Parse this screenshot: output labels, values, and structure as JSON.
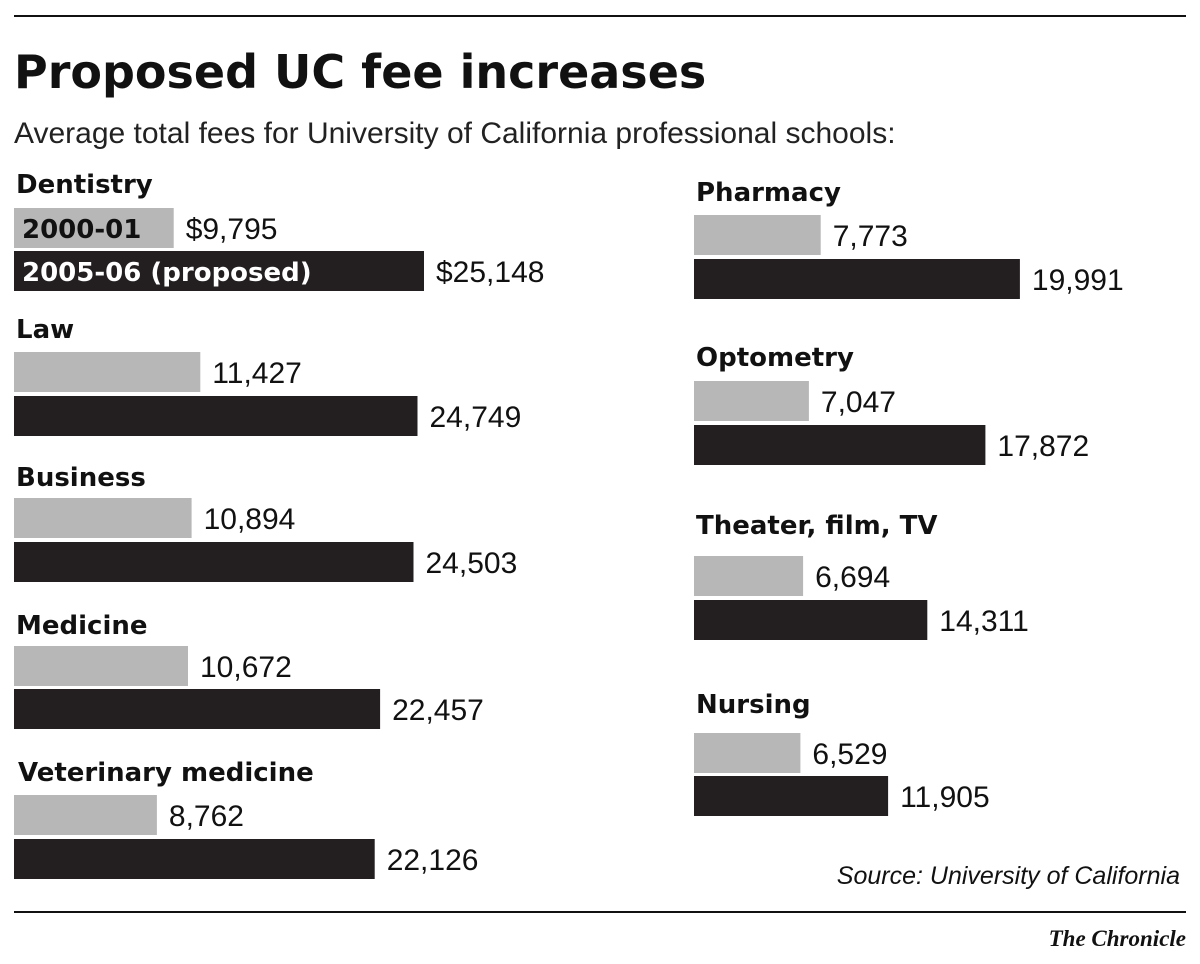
{
  "chart_data": {
    "type": "bar",
    "orientation": "horizontal",
    "title": "Proposed UC fee increases",
    "subtitle": "Average total fees for University of California professional schools:",
    "categories": [
      "Dentistry",
      "Law",
      "Business",
      "Medicine",
      "Veterinary medicine",
      "Pharmacy",
      "Optometry",
      "Theater, film, TV",
      "Nursing"
    ],
    "series": [
      {
        "name": "2000-01",
        "color": "#b7b7b7",
        "values": [
          9795,
          11427,
          10894,
          10672,
          8762,
          7773,
          7047,
          6694,
          6529
        ],
        "labels": [
          "$9,795",
          "11,427",
          "10,894",
          "10,672",
          "8,762",
          "7,773",
          "7,047",
          "6,694",
          "6,529"
        ]
      },
      {
        "name": "2005-06 (proposed)",
        "color": "#231f20",
        "values": [
          25148,
          24749,
          24503,
          22457,
          22126,
          19991,
          17872,
          14311,
          11905
        ],
        "labels": [
          "$25,148",
          "24,749",
          "24,503",
          "22,457",
          "22,126",
          "19,991",
          "17,872",
          "14,311",
          "11,905"
        ]
      }
    ],
    "legend": "inside-first-bars",
    "grid": false,
    "source": "Source: University of California",
    "credit": "The Chronicle"
  }
}
